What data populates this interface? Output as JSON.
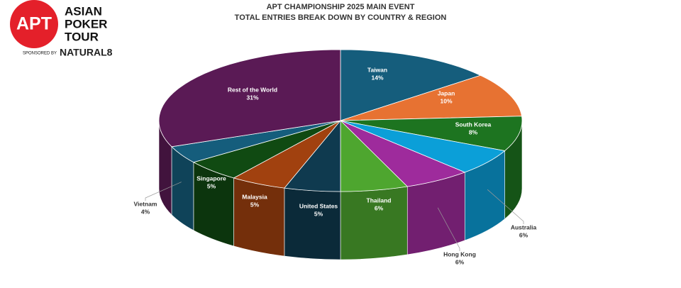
{
  "logo": {
    "badge": "APT",
    "line1": "ASIAN",
    "line2": "POKER",
    "line3": "TOUR",
    "sponsor_prefix": "SPONSORED BY",
    "sponsor": "NATURAL8"
  },
  "chart_data": {
    "type": "pie3d",
    "title": "APT CHAMPIONSHIP 2025 MAIN EVENT",
    "subtitle": "TOTAL ENTRIES BREAK DOWN BY COUNTRY & REGION",
    "categories": [
      "Taiwan",
      "Japan",
      "South Korea",
      "Australia",
      "Hong Kong",
      "Thailand",
      "United States",
      "Malaysia",
      "Singapore",
      "Vietnam",
      "Rest of the World"
    ],
    "values": [
      14,
      10,
      8,
      6,
      6,
      6,
      5,
      5,
      5,
      4,
      31
    ],
    "value_labels": [
      "14%",
      "10%",
      "8%",
      "6%",
      "6%",
      "6%",
      "5%",
      "5%",
      "5%",
      "4%",
      "31%"
    ],
    "colors": [
      "#155d7c",
      "#e77232",
      "#1d7420",
      "#0b9fd8",
      "#9e2b9c",
      "#4ea62f",
      "#0f3a4f",
      "#a1410f",
      "#104a12",
      "#155d7c",
      "#5a1a55"
    ]
  }
}
